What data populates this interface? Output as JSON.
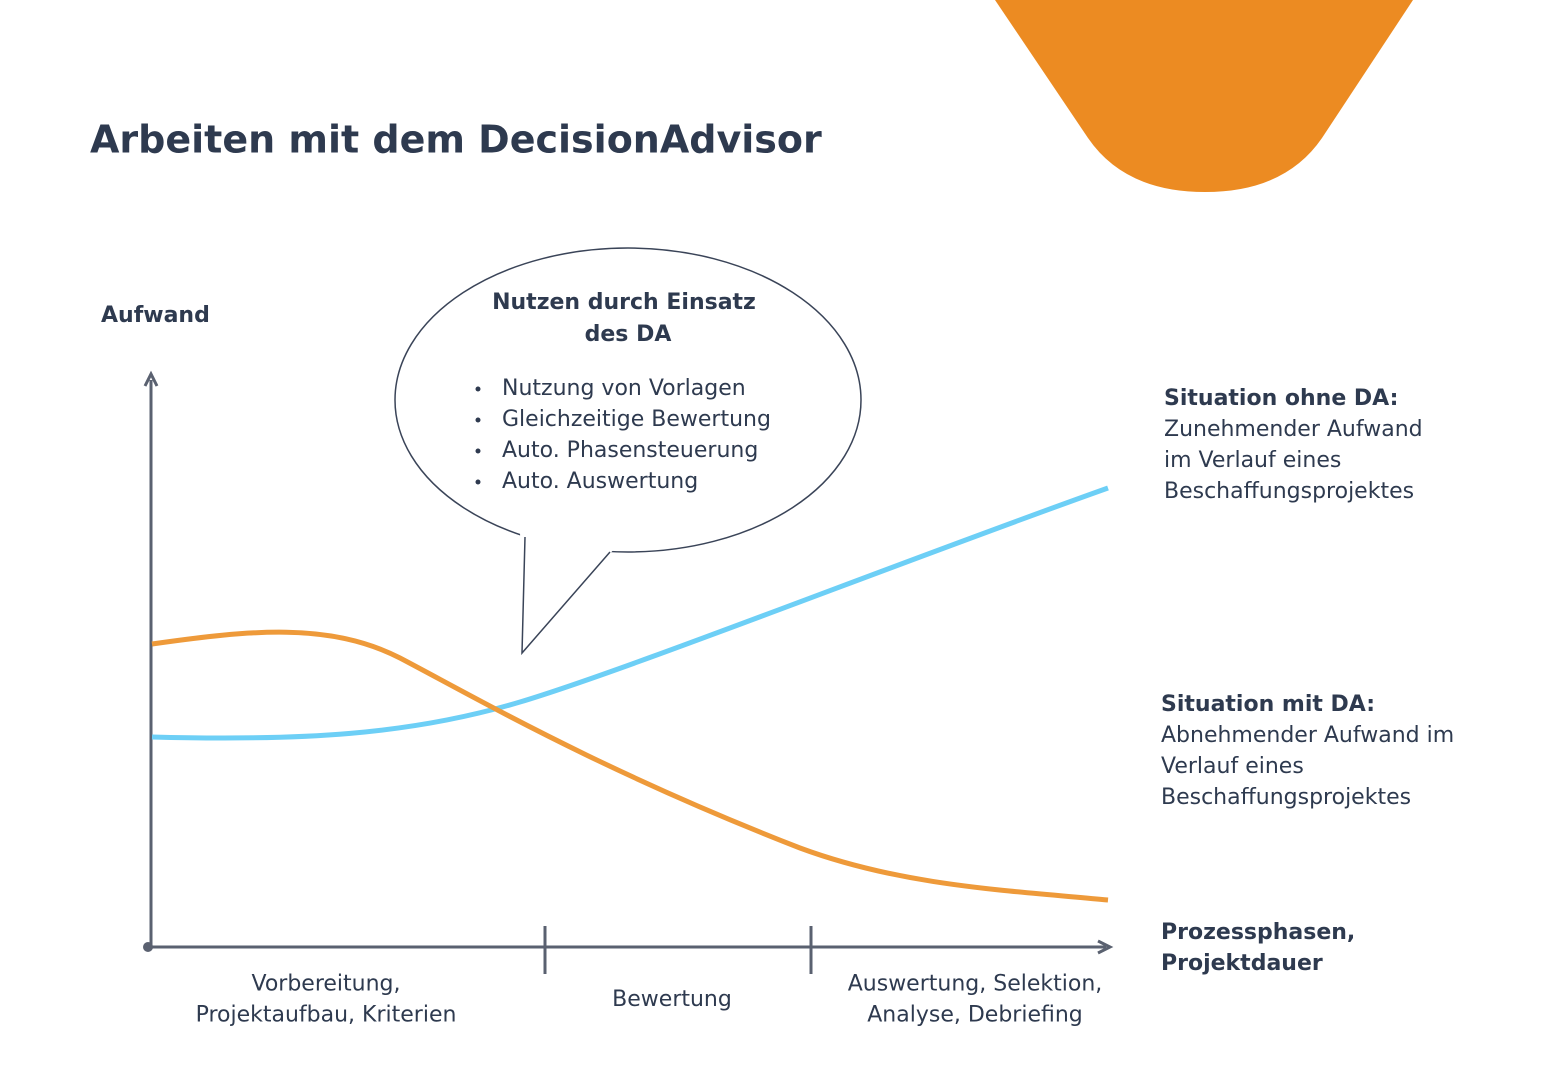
{
  "title": "Arbeiten mit dem DecisionAdvisor",
  "y_axis_label": "Aufwand",
  "callout": {
    "title_lines": [
      "Nutzen durch Einsatz",
      "des DA"
    ],
    "bullets": [
      "Nutzung von Vorlagen",
      "Gleichzeitige Bewertung",
      "Auto. Phasensteuerung",
      "Auto. Auswertung"
    ]
  },
  "situation_without": {
    "heading": "Situation ohne DA:",
    "lines": [
      "Zunehmender Aufwand",
      "im Verlauf eines",
      "Beschaffungsprojektes"
    ]
  },
  "situation_with": {
    "heading": "Situation mit DA:",
    "lines": [
      "Abnehmender Aufwand im",
      "Verlauf eines",
      "Beschaffungsprojektes"
    ]
  },
  "x_axis_label_lines": [
    "Prozessphasen,",
    "Projektdauer"
  ],
  "phases": [
    {
      "lines": [
        "Vorbereitung,",
        "Projektaufbau, Kriterien"
      ]
    },
    {
      "lines": [
        "Bewertung"
      ]
    },
    {
      "lines": [
        "Auswertung, Selektion,",
        "Analyse, Debriefing"
      ]
    }
  ]
}
